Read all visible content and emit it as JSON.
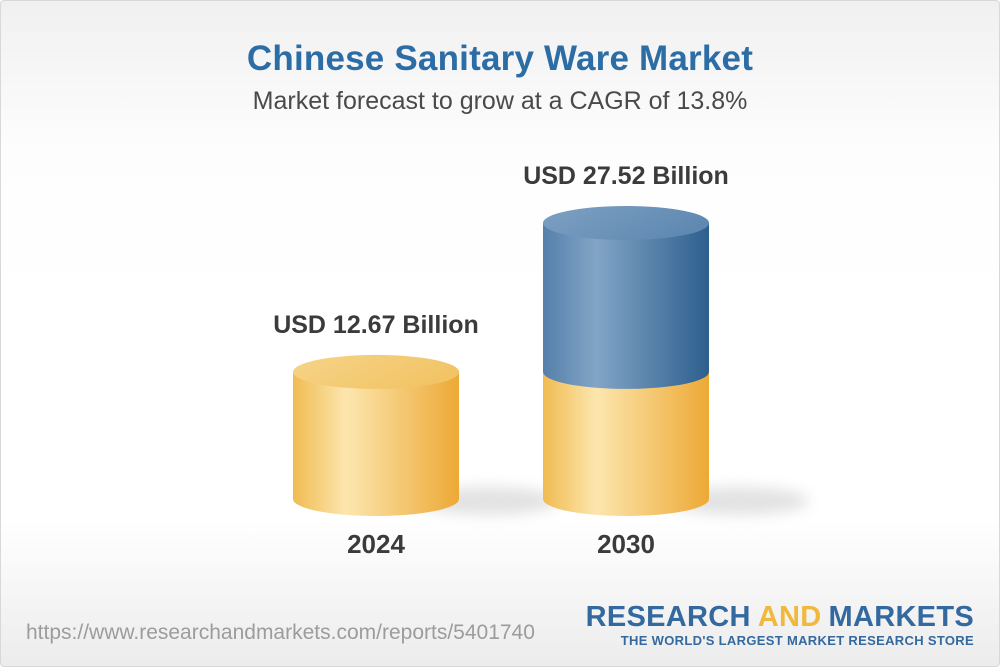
{
  "header": {
    "title": "Chinese Sanitary Ware Market",
    "subtitle": "Market forecast to grow at a CAGR of 13.8%"
  },
  "chart_data": {
    "type": "bar",
    "variant": "3d-cylinder, 2030 bar stacked (yellow base = 2024 value, blue top = growth)",
    "categories": [
      "2024",
      "2030"
    ],
    "values": [
      12.67,
      27.52
    ],
    "value_labels": [
      "USD 12.67 Billion",
      "USD 27.52 Billion"
    ],
    "unit": "USD Billion",
    "cagr_percent": 13.8,
    "legend_position": "none",
    "grid": false,
    "axes_visible": false
  },
  "footer": {
    "url": "https://www.researchandmarkets.com/reports/5401740",
    "logo": {
      "part1": "RESEARCH",
      "part2": "AND",
      "part3": "MARKETS",
      "tagline": "THE WORLD'S LARGEST MARKET RESEARCH STORE"
    }
  },
  "colors": {
    "title_blue": "#2d6da6",
    "subtitle_gray": "#4a4a4a",
    "text_dark": "#3b3b3b",
    "url_gray": "#9c9c9c",
    "logo_blue": "#34699f",
    "logo_gold": "#f0b83d",
    "yellow_edge": "#f0bb51",
    "yellow_light": "#fce6ae",
    "yellow_dark": "#eda936",
    "yellow_top_light": "#f6d489",
    "yellow_top_dark": "#f2c466",
    "blue_edge": "#5580ab",
    "blue_light": "#82a5c6",
    "blue_dark": "#2d5f8e",
    "blue_top_light": "#7ea1c3",
    "blue_top_dark": "#6089b2",
    "shadow_gray": "#bfbfbf"
  }
}
